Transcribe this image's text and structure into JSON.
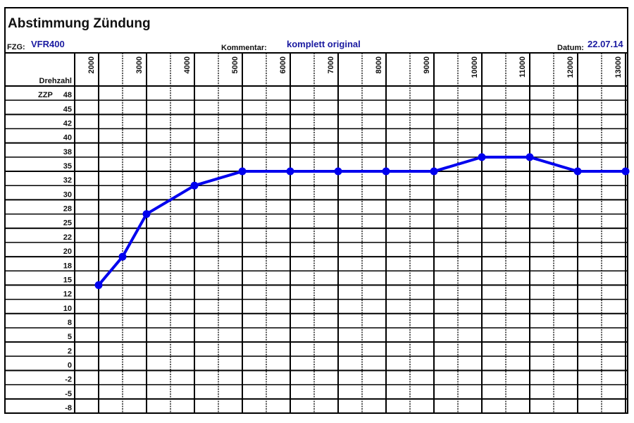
{
  "title": "Abstimmung Zündung",
  "fields": {
    "fzg_label": "FZG:",
    "fzg_value": "VFR400",
    "kommentar_label": "Kommentar:",
    "kommentar_value": "komplett original",
    "datum_label": "Datum:",
    "datum_value": "22.07.14"
  },
  "colors": {
    "series": "#0000ee",
    "value_text": "#00008b",
    "grid": "#000000"
  },
  "chart_data": {
    "type": "line",
    "title": "Abstimmung Zündung",
    "xlabel": "Drehzahl",
    "ylabel": "ZZP",
    "x_ticks": [
      "2000",
      "3000",
      "4000",
      "5000",
      "6000",
      "7000",
      "8000",
      "9000",
      "10000",
      "11000",
      "12000",
      "13000"
    ],
    "y_ticks": [
      "48",
      "45",
      "42",
      "40",
      "38",
      "35",
      "32",
      "30",
      "28",
      "25",
      "22",
      "20",
      "18",
      "15",
      "12",
      "10",
      "8",
      "5",
      "2",
      "0",
      "-2",
      "-5",
      "-8"
    ],
    "xlim": [
      2000,
      13000
    ],
    "grid": true,
    "series": [
      {
        "name": "ZZP",
        "x": [
          2000,
          2500,
          3000,
          4000,
          5000,
          6000,
          7000,
          8000,
          9000,
          10000,
          11000,
          12000,
          13000
        ],
        "y": [
          15,
          20,
          28,
          32,
          35,
          35,
          35,
          35,
          35,
          38,
          38,
          35,
          35
        ]
      }
    ]
  }
}
